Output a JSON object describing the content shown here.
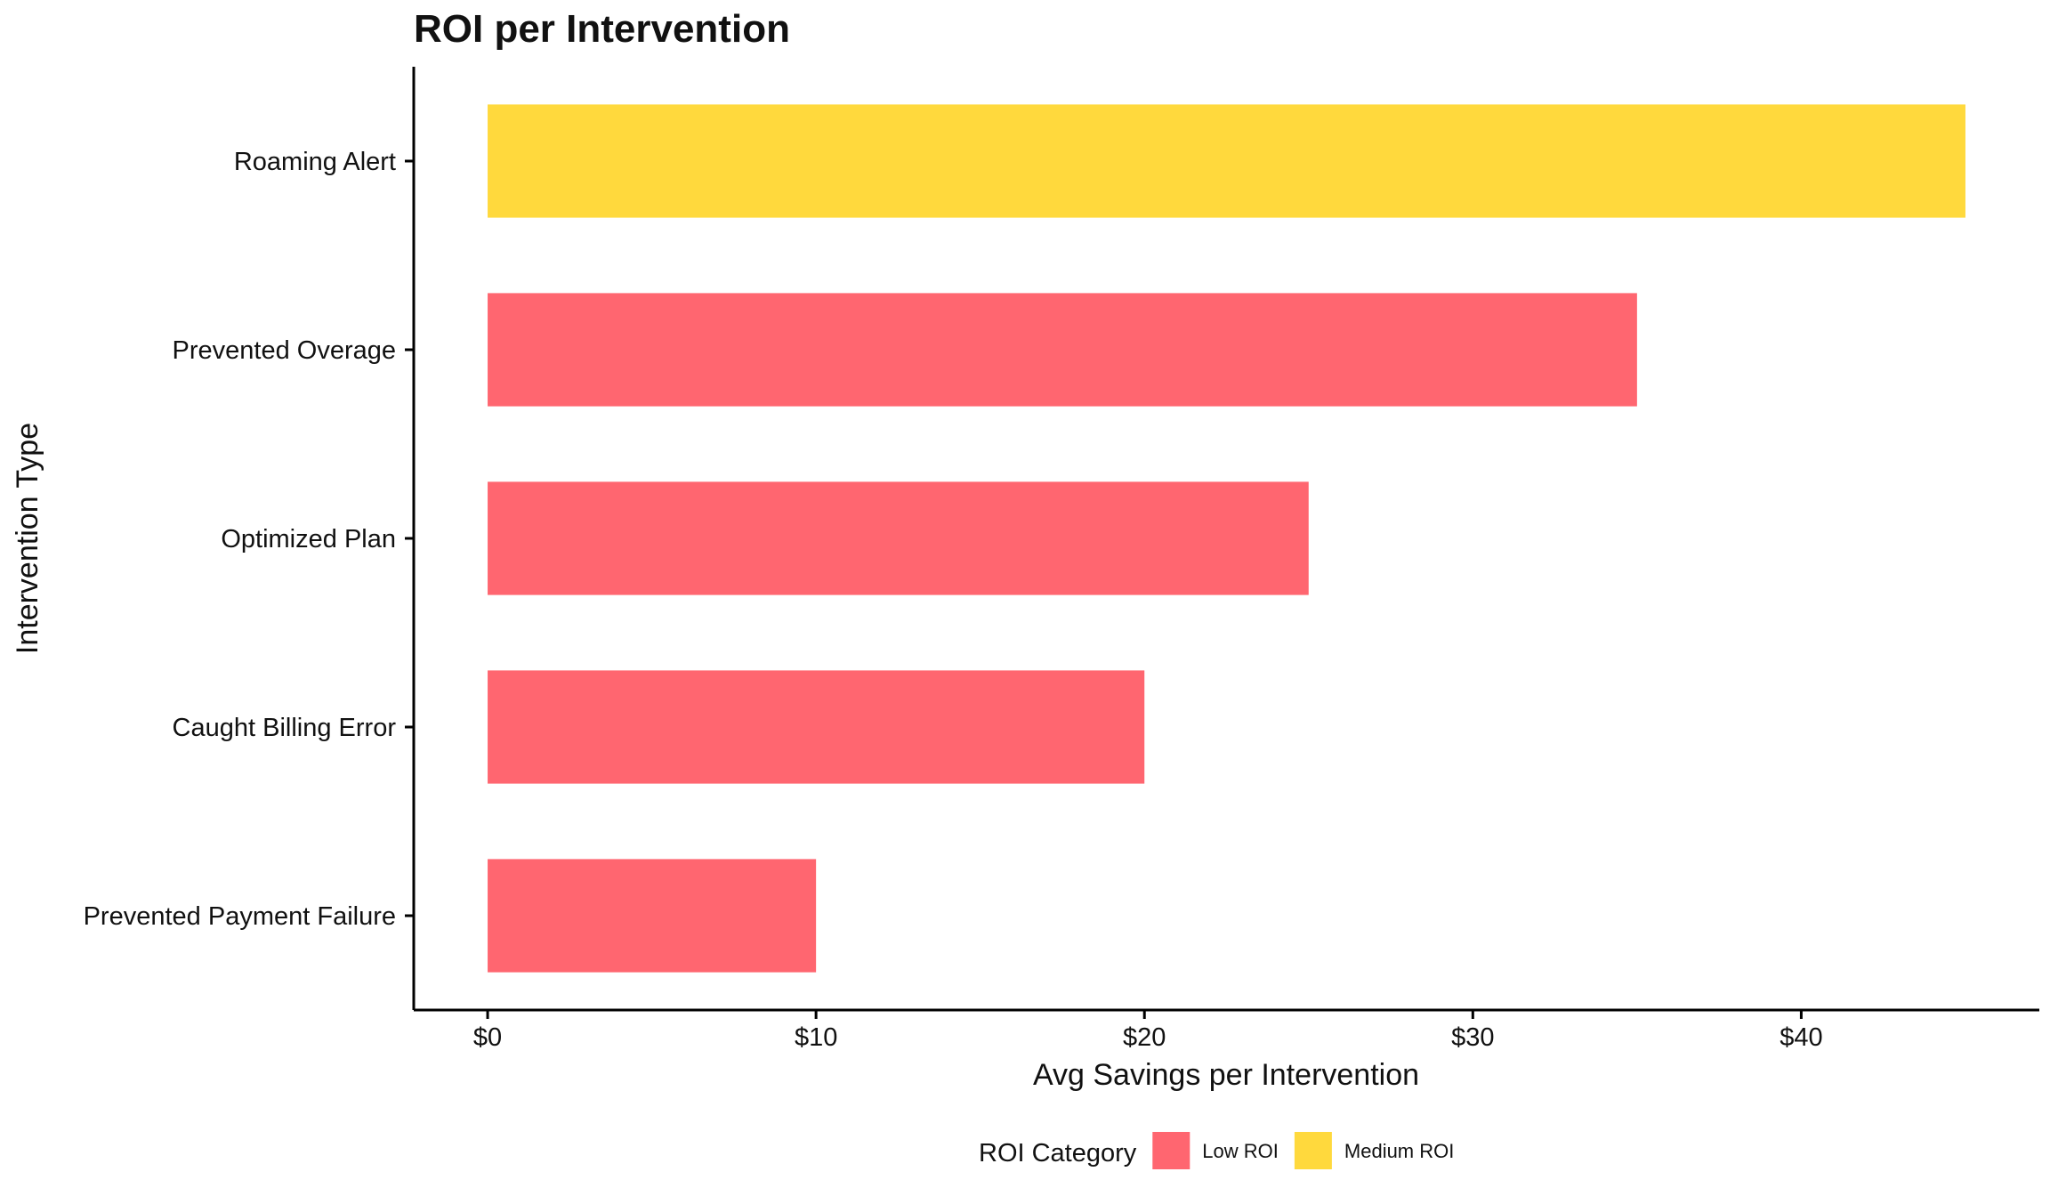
{
  "colors": {
    "Low ROI": "#FF6670",
    "Medium ROI": "#FFD93D",
    "axis": "#000000"
  },
  "chart_data": {
    "type": "bar",
    "orientation": "horizontal",
    "title": "ROI per Intervention",
    "xlabel": "Avg Savings per Intervention",
    "ylabel": "Intervention Type",
    "categories": [
      "Roaming Alert",
      "Prevented Overage",
      "Optimized Plan",
      "Caught Billing Error",
      "Prevented Payment Failure"
    ],
    "values": [
      45,
      35,
      25,
      20,
      10
    ],
    "roi_category": [
      "Medium ROI",
      "Low ROI",
      "Low ROI",
      "Low ROI",
      "Low ROI"
    ],
    "x_ticks": [
      {
        "value": 0,
        "label": "$0"
      },
      {
        "value": 10,
        "label": "$10"
      },
      {
        "value": 20,
        "label": "$20"
      },
      {
        "value": 30,
        "label": "$30"
      },
      {
        "value": 40,
        "label": "$40"
      }
    ],
    "xlim": [
      -2.25,
      47.25
    ],
    "grid": false,
    "legend": {
      "title": "ROI Category",
      "position": "bottom",
      "entries": [
        "Low ROI",
        "Medium ROI"
      ]
    }
  }
}
